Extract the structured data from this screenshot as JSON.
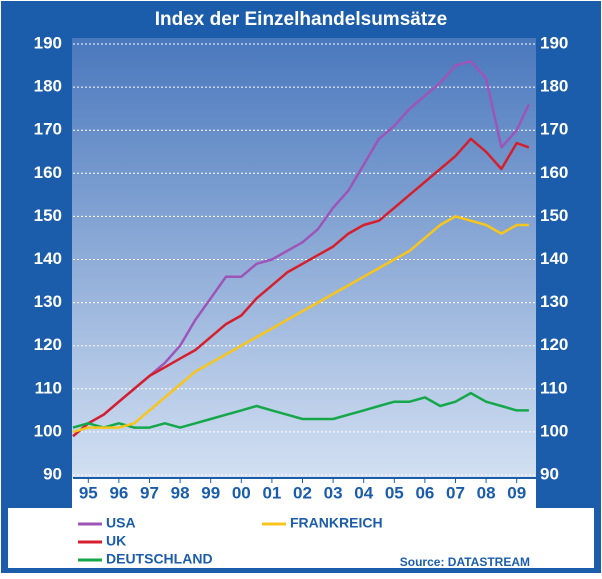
{
  "chart_data": {
    "type": "line",
    "title": "Index der Einzelhandelsumsätze",
    "source": "Source: DATASTREAM",
    "x": [
      1995,
      1995.5,
      1996,
      1996.5,
      1997,
      1997.5,
      1998,
      1998.5,
      1999,
      1999.5,
      2000,
      2000.5,
      2001,
      2001.5,
      2002,
      2002.5,
      2003,
      2003.5,
      2004,
      2004.5,
      2005,
      2005.5,
      2006,
      2006.5,
      2007,
      2007.5,
      2008,
      2008.5,
      2009,
      2009.5,
      2009.9
    ],
    "series": [
      {
        "name": "USA",
        "color": "#9d55b8",
        "values": [
          99,
          102,
          104,
          107,
          110,
          113,
          116,
          120,
          126,
          131,
          136,
          136,
          139,
          140,
          142,
          144,
          147,
          152,
          156,
          162,
          168,
          171,
          175,
          178,
          181,
          185,
          186,
          182,
          166,
          170,
          176
        ]
      },
      {
        "name": "UK",
        "color": "#d61f2c",
        "values": [
          99,
          102,
          104,
          107,
          110,
          113,
          115,
          117,
          119,
          122,
          125,
          127,
          131,
          134,
          137,
          139,
          141,
          143,
          146,
          148,
          149,
          152,
          155,
          158,
          161,
          164,
          168,
          165,
          161,
          167,
          166
        ]
      },
      {
        "name": "DEUTSCHLAND",
        "color": "#14a84a",
        "values": [
          101,
          102,
          101,
          102,
          101,
          101,
          102,
          101,
          102,
          103,
          104,
          105,
          106,
          105,
          104,
          103,
          103,
          103,
          104,
          105,
          106,
          107,
          107,
          108,
          106,
          107,
          109,
          107,
          106,
          105,
          105
        ]
      },
      {
        "name": "FRANKREICH",
        "color": "#f7c51c",
        "values": [
          100,
          101,
          101,
          101,
          102,
          105,
          108,
          111,
          114,
          116,
          118,
          120,
          122,
          124,
          126,
          128,
          130,
          132,
          134,
          136,
          138,
          140,
          142,
          145,
          148,
          150,
          149,
          148,
          146,
          148,
          148
        ]
      }
    ],
    "xlim": [
      1995,
      2010
    ],
    "xticks": [
      {
        "value": 1995.5,
        "label": "95"
      },
      {
        "value": 1996.5,
        "label": "96"
      },
      {
        "value": 1997.5,
        "label": "97"
      },
      {
        "value": 1998.5,
        "label": "98"
      },
      {
        "value": 1999.5,
        "label": "99"
      },
      {
        "value": 2000.5,
        "label": "00"
      },
      {
        "value": 2001.5,
        "label": "01"
      },
      {
        "value": 2002.5,
        "label": "02"
      },
      {
        "value": 2003.5,
        "label": "03"
      },
      {
        "value": 2004.5,
        "label": "04"
      },
      {
        "value": 2005.5,
        "label": "05"
      },
      {
        "value": 2006.5,
        "label": "06"
      },
      {
        "value": 2007.5,
        "label": "07"
      },
      {
        "value": 2008.5,
        "label": "08"
      },
      {
        "value": 2009.5,
        "label": "09"
      }
    ],
    "ylim": [
      90,
      190
    ],
    "yticks": [
      90,
      100,
      110,
      120,
      130,
      140,
      150,
      160,
      170,
      180,
      190
    ],
    "grid": true
  }
}
